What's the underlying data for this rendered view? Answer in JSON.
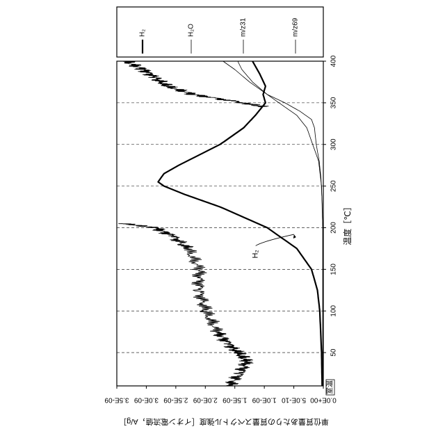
{
  "chart_data": {
    "type": "line",
    "orientation": "rotated-90-clockwise",
    "xlabel": "温度［℃］",
    "ylabel": "単位質量あたりの質量スペクトル強度［イオン電流値，A/g］",
    "x_origin_label": "室温",
    "x_ticks": [
      50,
      100,
      150,
      200,
      250,
      300,
      350,
      400
    ],
    "x_range": [
      10,
      400
    ],
    "y_ticks": [
      "0.0E+00",
      "5.0E-10",
      "1.0E-09",
      "1.5E-09",
      "2.0E-09",
      "2.5E-09",
      "3.0E-09",
      "3.5E-09"
    ],
    "y_range": [
      0,
      3.5e-09
    ],
    "grid": "dashed vertical gridlines at x ticks",
    "legend": {
      "placement": "separate panel",
      "entries": [
        {
          "label": "H₂",
          "style": "thick"
        },
        {
          "label": "H₂O",
          "style": "thin"
        },
        {
          "label": "m/z31",
          "style": "thin"
        },
        {
          "label": "m/z69",
          "style": "thin"
        }
      ]
    },
    "annotations": [
      {
        "text": "H₂",
        "x": 175,
        "y": 1.1e-09,
        "target_series": "H2"
      }
    ],
    "series": [
      {
        "name": "H₂",
        "style": "thick",
        "x": [
          10,
          50,
          100,
          125,
          150,
          175,
          200,
          225,
          240,
          250,
          255,
          265,
          275,
          300,
          320,
          335,
          350,
          360,
          370,
          385,
          400
        ],
        "y": [
          2e-11,
          3e-11,
          6e-11,
          1e-10,
          2e-10,
          4.5e-10,
          9.5e-10,
          1.75e-09,
          2.35e-09,
          2.7e-09,
          2.8e-09,
          2.7e-09,
          2.45e-09,
          1.75e-09,
          1.35e-09,
          1.15e-09,
          9.8e-10,
          1.02e-09,
          9.8e-10,
          1.08e-09,
          1.2e-09
        ]
      },
      {
        "name": "H₂O",
        "style": "thin noisy",
        "x": [
          10,
          25,
          40,
          50,
          60,
          75,
          100,
          125,
          150,
          175,
          190,
          200,
          205
        ],
        "y": [
          1.6e-09,
          1.4e-09,
          1.3e-09,
          1.45e-09,
          1.6e-09,
          1.8e-09,
          2e-09,
          2.1e-09,
          2.1e-09,
          2.3e-09,
          2.55e-09,
          2.85e-09,
          3.4e-09
        ]
      },
      {
        "name": "H₂O (high-temperature segment)",
        "style": "thin noisy",
        "x": [
          345,
          350,
          360,
          370,
          380,
          390,
          400
        ],
        "y": [
          1e-09,
          1.35e-09,
          2.2e-09,
          2.65e-09,
          2.85e-09,
          3.05e-09,
          3.35e-09
        ]
      },
      {
        "name": "m/z31",
        "style": "thin",
        "x": [
          10,
          200,
          250,
          280,
          300,
          320,
          335,
          345,
          360,
          375,
          390,
          400
        ],
        "y": [
          1e-11,
          1e-11,
          3e-11,
          8e-11,
          1.8e-10,
          2.8e-10,
          4.5e-10,
          6.5e-10,
          9.5e-10,
          1.25e-09,
          1.5e-09,
          1.7e-09
        ]
      },
      {
        "name": "m/z69",
        "style": "thin",
        "x": [
          10,
          200,
          230,
          260,
          280,
          300,
          320,
          330,
          340,
          350,
          360,
          375,
          390,
          400
        ],
        "y": [
          1e-11,
          1e-11,
          2e-11,
          4e-11,
          7e-11,
          1.2e-10,
          1.5e-10,
          2e-10,
          4e-10,
          6.5e-10,
          9.5e-10,
          1.2e-09,
          1.38e-09,
          1.45e-09
        ]
      }
    ]
  }
}
